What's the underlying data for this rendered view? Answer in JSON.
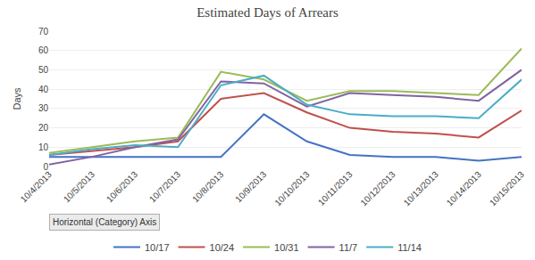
{
  "chart_data": {
    "type": "line",
    "title": "Estimated Days of Arrears",
    "ylabel": "Days",
    "annotations": [
      "Horizontal (Category) Axis"
    ],
    "categories": [
      "10/4/2013",
      "10/5/2013",
      "10/6/2013",
      "10/7/2013",
      "10/8/2013",
      "10/9/2013",
      "10/10/2013",
      "10/11/2013",
      "10/12/2013",
      "10/13/2013",
      "10/14/2013",
      "10/15/2013"
    ],
    "series": [
      {
        "name": "10/17",
        "color": "#4472C4",
        "values": [
          5,
          5,
          5,
          5,
          5,
          27,
          13,
          6,
          5,
          5,
          3,
          5
        ]
      },
      {
        "name": "10/24",
        "color": "#C0504D",
        "values": [
          6,
          8,
          10,
          13,
          35,
          38,
          28,
          20,
          18,
          17,
          15,
          29
        ]
      },
      {
        "name": "10/31",
        "color": "#9BBB59",
        "values": [
          7,
          10,
          13,
          15,
          49,
          45,
          34,
          39,
          39,
          38,
          37,
          61
        ]
      },
      {
        "name": "11/7",
        "color": "#8064A2",
        "values": [
          1,
          5,
          10,
          14,
          44,
          43,
          31,
          38,
          37,
          36,
          34,
          50
        ]
      },
      {
        "name": "11/14",
        "color": "#4BACC6",
        "values": [
          6,
          9,
          11,
          10,
          42,
          47,
          32,
          27,
          26,
          26,
          25,
          45
        ]
      }
    ],
    "ylim": [
      0,
      70
    ],
    "yticks": [
      0,
      10,
      20,
      30,
      40,
      50,
      60,
      70
    ],
    "grid": true,
    "legend": "bottom"
  }
}
